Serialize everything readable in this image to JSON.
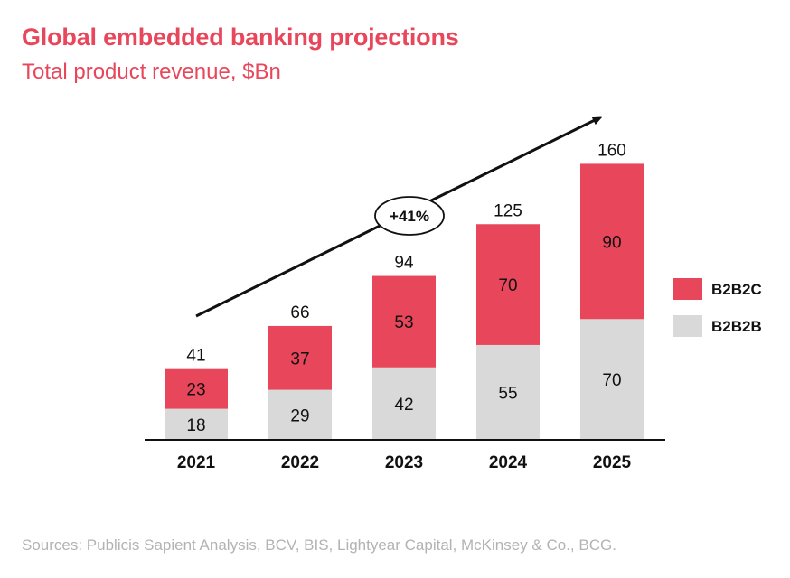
{
  "header": {
    "title": "Global embedded banking projections",
    "subtitle": "Total product revenue, $Bn"
  },
  "footer": {
    "sources": "Sources: Publicis Sapient Analysis, BCV, BIS, Lightyear Capital, McKinsey & Co., BCG."
  },
  "colors": {
    "title": "#e8465a",
    "b2b2c": "#e8465a",
    "b2b2b": "#d9d9d9",
    "footer": "#b3b3b3"
  },
  "chart_data": {
    "type": "bar",
    "stacked": true,
    "categories": [
      "2021",
      "2022",
      "2023",
      "2024",
      "2025"
    ],
    "series": [
      {
        "name": "B2B2B",
        "values": [
          18,
          29,
          42,
          55,
          70
        ],
        "color": "#d9d9d9"
      },
      {
        "name": "B2B2C",
        "values": [
          23,
          37,
          53,
          70,
          90
        ],
        "color": "#e8465a"
      }
    ],
    "totals": [
      41,
      66,
      94,
      125,
      160
    ],
    "annotation": "+41%",
    "legend_position": "right",
    "grid": false,
    "ylim": [
      0,
      160
    ]
  }
}
